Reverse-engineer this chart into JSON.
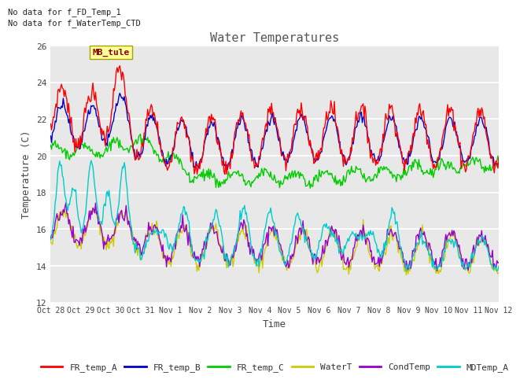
{
  "title": "Water Temperatures",
  "xlabel": "Time",
  "ylabel": "Temperature (C)",
  "ylim": [
    12,
    26
  ],
  "yticks": [
    12,
    14,
    16,
    18,
    20,
    22,
    24,
    26
  ],
  "annotations": [
    "No data for f_FD_Temp_1",
    "No data for f_WaterTemp_CTD"
  ],
  "mb_tule_label": "MB_tule",
  "legend_entries": [
    "FR_temp_A",
    "FR_temp_B",
    "FR_temp_C",
    "WaterT",
    "CondTemp",
    "MDTemp_A"
  ],
  "legend_colors": [
    "#ff0000",
    "#0000cc",
    "#00cc00",
    "#cccc00",
    "#9900cc",
    "#00cccc"
  ],
  "fig_bg_color": "#ffffff",
  "plot_bg_color": "#e8e8e8",
  "grid_color": "#ffffff",
  "tick_labels": [
    "Oct 28",
    "Oct 29",
    "Oct 30",
    "Oct 31",
    "Nov 1",
    "Nov 2",
    "Nov 3",
    "Nov 4",
    "Nov 5",
    "Nov 6",
    "Nov 7",
    "Nov 8",
    "Nov 9",
    "Nov 10",
    "Nov 11",
    "Nov 12"
  ],
  "n_points": 500
}
